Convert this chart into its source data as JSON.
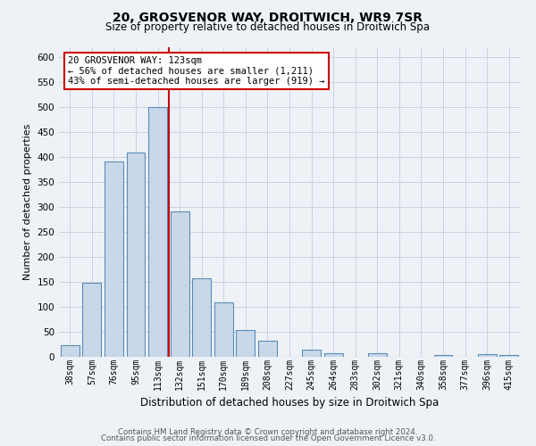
{
  "title": "20, GROSVENOR WAY, DROITWICH, WR9 7SR",
  "subtitle": "Size of property relative to detached houses in Droitwich Spa",
  "xlabel": "Distribution of detached houses by size in Droitwich Spa",
  "ylabel": "Number of detached properties",
  "bar_labels": [
    "38sqm",
    "57sqm",
    "76sqm",
    "95sqm",
    "113sqm",
    "132sqm",
    "151sqm",
    "170sqm",
    "189sqm",
    "208sqm",
    "227sqm",
    "245sqm",
    "264sqm",
    "283sqm",
    "302sqm",
    "321sqm",
    "340sqm",
    "358sqm",
    "377sqm",
    "396sqm",
    "415sqm"
  ],
  "bar_values": [
    23,
    148,
    390,
    408,
    500,
    290,
    157,
    109,
    53,
    33,
    0,
    15,
    8,
    0,
    8,
    0,
    0,
    3,
    0,
    5,
    3
  ],
  "bar_color": "#c8d8e8",
  "bar_edge_color": "#5b8db8",
  "marker_bin_index": 4,
  "marker_color": "#cc0000",
  "annotation_title": "20 GROSVENOR WAY: 123sqm",
  "annotation_line1": "← 56% of detached houses are smaller (1,211)",
  "annotation_line2": "43% of semi-detached houses are larger (919) →",
  "annotation_box_color": "#ffffff",
  "annotation_box_edge": "#cc0000",
  "ylim": [
    0,
    620
  ],
  "yticks": [
    0,
    50,
    100,
    150,
    200,
    250,
    300,
    350,
    400,
    450,
    500,
    550,
    600
  ],
  "grid_color": "#c8d4e0",
  "footer1": "Contains HM Land Registry data © Crown copyright and database right 2024.",
  "footer2": "Contains public sector information licensed under the Open Government Licence v3.0.",
  "bg_color": "#eef2f6"
}
